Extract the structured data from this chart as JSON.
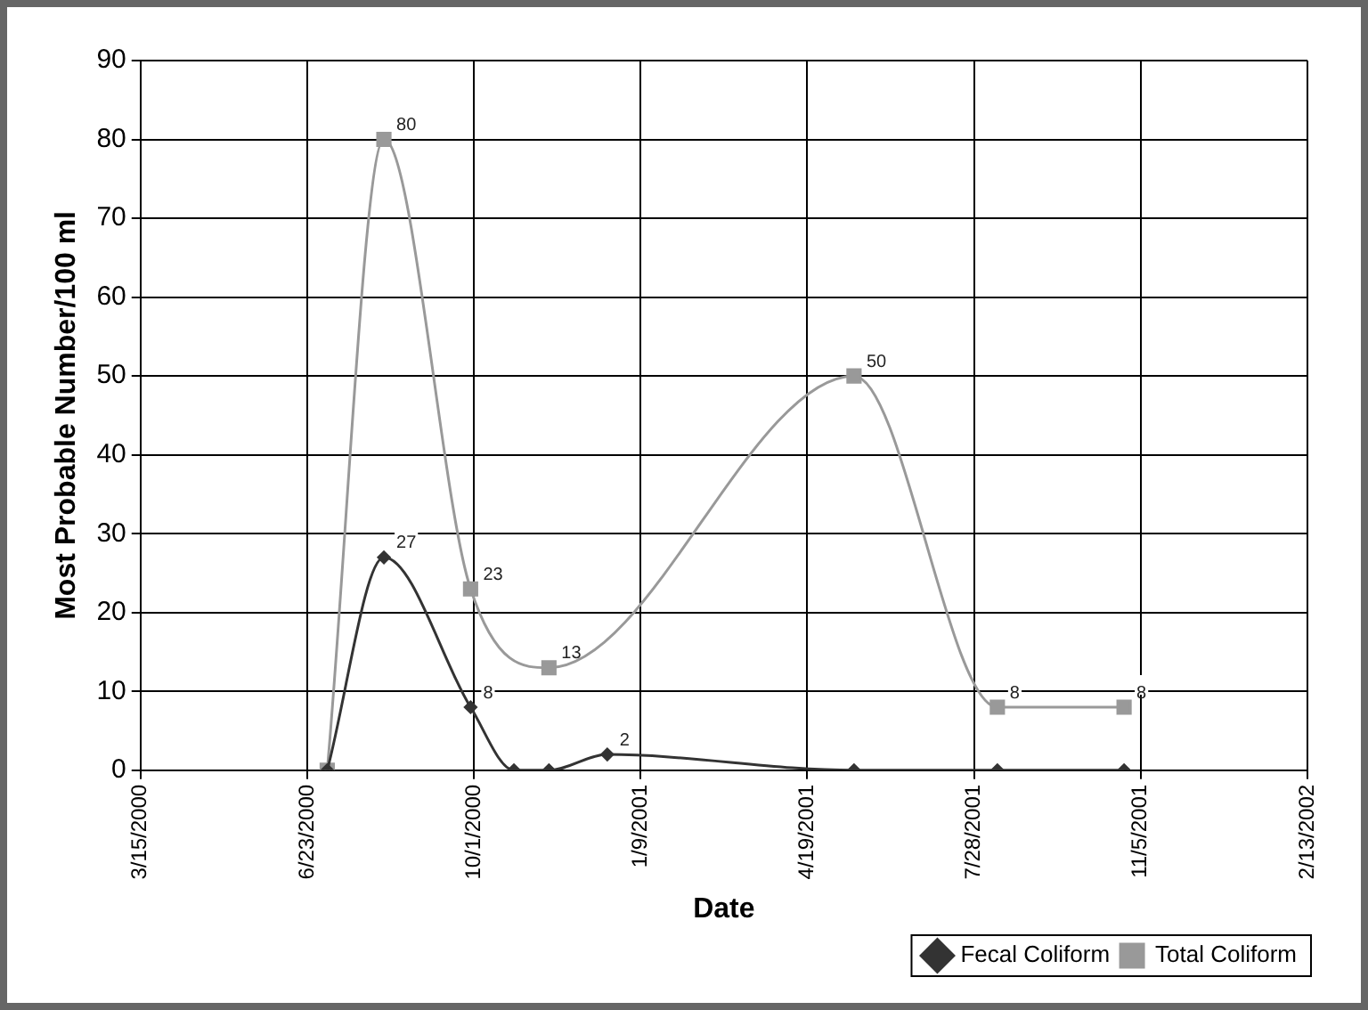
{
  "chart_data": {
    "type": "line",
    "xlabel": "Date",
    "ylabel": "Most Probable Number/100 ml",
    "xlim": [
      "2000-03-15",
      "2002-02-13"
    ],
    "xticks": [
      {
        "value": "2000-03-15",
        "label": "3/15/2000"
      },
      {
        "value": "2000-06-23",
        "label": "6/23/2000"
      },
      {
        "value": "2000-10-01",
        "label": "10/1/2000"
      },
      {
        "value": "2001-01-09",
        "label": "1/9/2001"
      },
      {
        "value": "2001-04-19",
        "label": "4/19/2001"
      },
      {
        "value": "2001-07-28",
        "label": "7/28/2001"
      },
      {
        "value": "2001-11-05",
        "label": "11/5/2001"
      },
      {
        "value": "2002-02-13",
        "label": "2/13/2002"
      }
    ],
    "ylim": [
      0,
      90
    ],
    "yticks": [
      0,
      10,
      20,
      30,
      40,
      50,
      60,
      70,
      80,
      90
    ],
    "grid": true,
    "legend": "bottom right",
    "series": [
      {
        "name": "Fecal Coliform",
        "color": "#333333",
        "marker": "diamond",
        "x": [
          "2000-07-05",
          "2000-08-08",
          "2000-09-29",
          "2000-10-25",
          "2000-11-15",
          "2000-12-20",
          "2001-05-17",
          "2001-08-11",
          "2001-10-26"
        ],
        "values": [
          0,
          27,
          8,
          0,
          0,
          2,
          0,
          0,
          0
        ],
        "value_labels": [
          null,
          "27",
          "8",
          null,
          null,
          "2",
          null,
          null,
          null
        ]
      },
      {
        "name": "Total Coliform",
        "color": "#999999",
        "marker": "square",
        "x": [
          "2000-07-05",
          "2000-08-08",
          "2000-09-29",
          "2000-11-15",
          "2001-05-17",
          "2001-08-11",
          "2001-10-26"
        ],
        "values": [
          0,
          80,
          23,
          13,
          50,
          8,
          8
        ],
        "value_labels": [
          null,
          "80",
          "23",
          "13",
          "50",
          "8",
          "8"
        ]
      }
    ]
  }
}
